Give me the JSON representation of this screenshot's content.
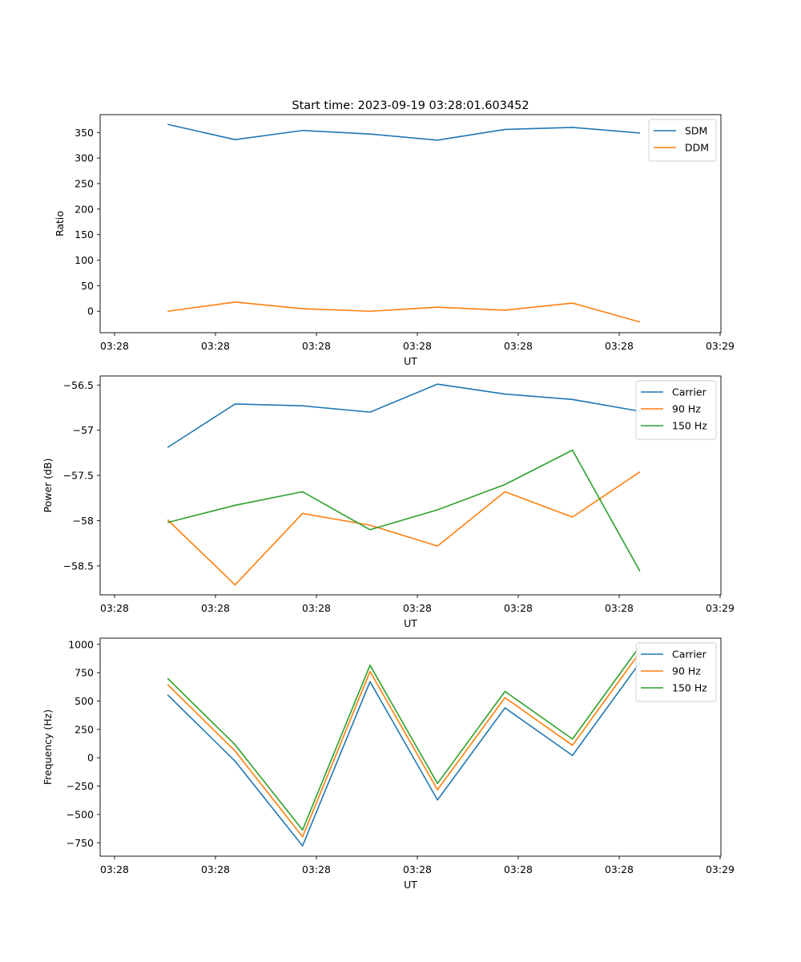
{
  "figure": {
    "title": "Start time: 2023-09-19 03:28:01.603452"
  },
  "chart_data": [
    {
      "type": "line",
      "title": "Start time: 2023-09-19 03:28:01.603452",
      "xlabel": "UT",
      "ylabel": "Ratio",
      "x_ticks": [
        "03:28",
        "03:28",
        "03:28",
        "03:28",
        "03:28",
        "03:28",
        "03:29"
      ],
      "xlim": [
        0,
        9.2
      ],
      "x": [
        1,
        2,
        3,
        4,
        5,
        6,
        7,
        8
      ],
      "ylim": [
        -42,
        385
      ],
      "y_ticks": [
        0,
        50,
        100,
        150,
        200,
        250,
        300,
        350
      ],
      "legend": "top-right",
      "series": [
        {
          "name": "SDM",
          "color": "#1f77b4",
          "values": [
            366,
            336,
            354,
            347,
            335,
            356,
            360,
            349
          ]
        },
        {
          "name": "DDM",
          "color": "#ff7f0e",
          "values": [
            0,
            18,
            5,
            0,
            8,
            2,
            16,
            -21
          ]
        }
      ]
    },
    {
      "type": "line",
      "title": "",
      "xlabel": "UT",
      "ylabel": "Power (dB)",
      "x_ticks": [
        "03:28",
        "03:28",
        "03:28",
        "03:28",
        "03:28",
        "03:28",
        "03:29"
      ],
      "xlim": [
        0,
        9.2
      ],
      "x": [
        1,
        2,
        3,
        4,
        5,
        6,
        7,
        8
      ],
      "ylim": [
        -58.82,
        -56.4
      ],
      "y_ticks": [
        -58.5,
        -58.0,
        -57.5,
        -57.0,
        -56.5
      ],
      "legend": "top-right",
      "series": [
        {
          "name": "Carrier",
          "color": "#1f77b4",
          "values": [
            -57.19,
            -56.71,
            -56.73,
            -56.8,
            -56.49,
            -56.6,
            -56.66,
            -56.79
          ]
        },
        {
          "name": "90 Hz",
          "color": "#ff7f0e",
          "values": [
            -57.99,
            -58.71,
            -57.92,
            -58.05,
            -58.28,
            -57.68,
            -57.96,
            -57.46
          ]
        },
        {
          "name": "150 Hz",
          "color": "#2ca02c",
          "values": [
            -58.02,
            -57.83,
            -57.68,
            -58.1,
            -57.88,
            -57.6,
            -57.22,
            -58.56
          ]
        }
      ]
    },
    {
      "type": "line",
      "title": "",
      "xlabel": "UT",
      "ylabel": "Frequency (Hz)",
      "x_ticks": [
        "03:28",
        "03:28",
        "03:28",
        "03:28",
        "03:28",
        "03:28",
        "03:29"
      ],
      "xlim": [
        0,
        9.2
      ],
      "x": [
        1,
        2,
        3,
        4,
        5,
        6,
        7,
        8
      ],
      "ylim": [
        -868,
        1055
      ],
      "y_ticks": [
        -750,
        -500,
        -250,
        0,
        250,
        500,
        750,
        1000
      ],
      "legend": "top-right",
      "series": [
        {
          "name": "Carrier",
          "color": "#1f77b4",
          "values": [
            555,
            -30,
            -777,
            671,
            -372,
            440,
            20,
            840
          ]
        },
        {
          "name": "90 Hz",
          "color": "#ff7f0e",
          "values": [
            645,
            60,
            -697,
            761,
            -282,
            530,
            110,
            930
          ]
        },
        {
          "name": "150 Hz",
          "color": "#2ca02c",
          "values": [
            700,
            115,
            -637,
            816,
            -227,
            585,
            165,
            985
          ]
        }
      ]
    }
  ]
}
